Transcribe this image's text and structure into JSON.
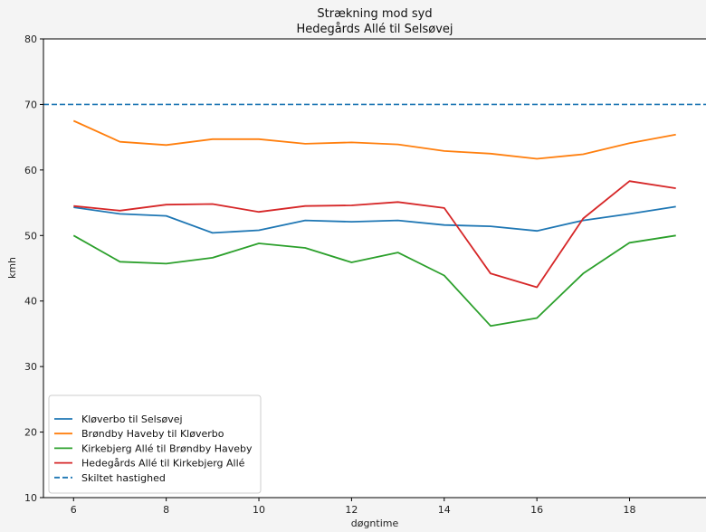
{
  "chart_data": {
    "type": "line",
    "title": "Strækning mod syd",
    "subtitle": "Hedegårds Allé til Selsøvej",
    "xlabel": "døgntime",
    "ylabel": "kmh",
    "xlim": [
      5.35,
      19.65
    ],
    "ylim": [
      10,
      80
    ],
    "xticks": [
      6,
      8,
      10,
      12,
      14,
      16,
      18
    ],
    "yticks": [
      10,
      20,
      30,
      40,
      50,
      60,
      70,
      80
    ],
    "grid": false,
    "legend_position": "lower-left",
    "x": [
      6,
      7,
      8,
      9,
      10,
      11,
      12,
      13,
      14,
      15,
      16,
      17,
      18,
      19
    ],
    "series": [
      {
        "name": "Kløverbo til Selsøvej",
        "color": "#1f77b4",
        "values": [
          54.3,
          53.3,
          53.0,
          50.4,
          50.8,
          52.3,
          52.1,
          52.3,
          51.6,
          51.4,
          50.7,
          52.3,
          53.3,
          54.4
        ]
      },
      {
        "name": "Brøndby Haveby til Kløverbo",
        "color": "#ff7f0e",
        "values": [
          67.5,
          64.3,
          63.8,
          64.7,
          64.7,
          64.0,
          64.2,
          63.9,
          62.9,
          62.5,
          61.7,
          62.4,
          64.1,
          65.4
        ]
      },
      {
        "name": "Kirkebjerg Allé til Brøndby Haveby",
        "color": "#2ca02c",
        "values": [
          50.0,
          46.0,
          45.7,
          46.6,
          48.8,
          48.1,
          45.9,
          47.4,
          43.9,
          36.2,
          37.4,
          44.2,
          48.9,
          50.0
        ]
      },
      {
        "name": "Hedegårds Allé til Kirkebjerg Allé",
        "color": "#d62728",
        "values": [
          54.5,
          53.8,
          54.7,
          54.8,
          53.6,
          54.5,
          54.6,
          55.1,
          54.2,
          44.2,
          42.1,
          52.6,
          58.3,
          57.2
        ]
      }
    ],
    "reference_line": {
      "name": "Skiltet hastighed",
      "value": 70,
      "color": "#1f77b4",
      "style": "dashed"
    }
  }
}
